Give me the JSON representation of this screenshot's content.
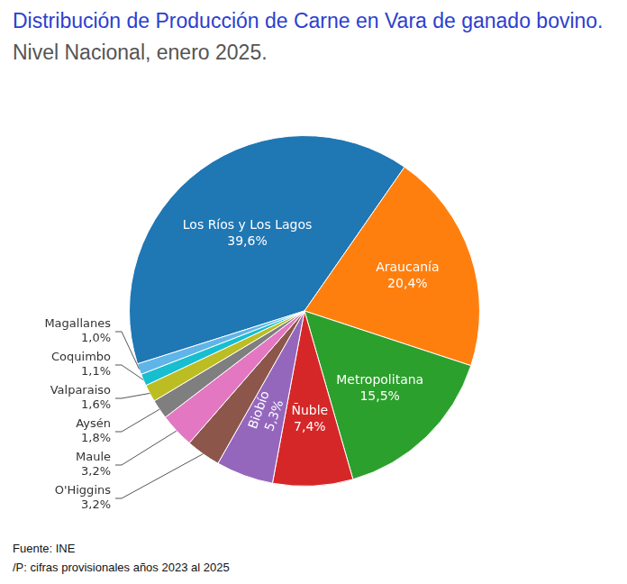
{
  "chart_data": {
    "type": "pie",
    "title": "Distribución de Producción de Carne en Vara de ganado bovino.",
    "subtitle": "Nivel Nacional, enero 2025.",
    "categories": [
      "Los Ríos y Los Lagos",
      "Araucanía",
      "Metropolitana",
      "Ñuble",
      "Biobío",
      "O'Higgins",
      "Maule",
      "Aysén",
      "Valparaiso",
      "Coquimbo",
      "Magallanes"
    ],
    "values": [
      39.6,
      20.4,
      15.5,
      7.4,
      5.3,
      3.2,
      3.2,
      1.8,
      1.6,
      1.1,
      1.0
    ],
    "value_labels": [
      "39,6%",
      "20,4%",
      "15,5%",
      "7,4%",
      "5,3%",
      "3,2%",
      "3,2%",
      "1,8%",
      "1,6%",
      "1,1%",
      "1,0%"
    ],
    "colors": [
      "#1f77b4",
      "#ff7f0e",
      "#2ca02c",
      "#d62728",
      "#9467bd",
      "#8c564b",
      "#e377c2",
      "#7f7f7f",
      "#bcbd22",
      "#17becf",
      "#5fb4e8"
    ],
    "data_labels": true,
    "annotations": [
      "Fuente: INE",
      "/P: cifras provisionales años 2023 al 2025"
    ]
  }
}
